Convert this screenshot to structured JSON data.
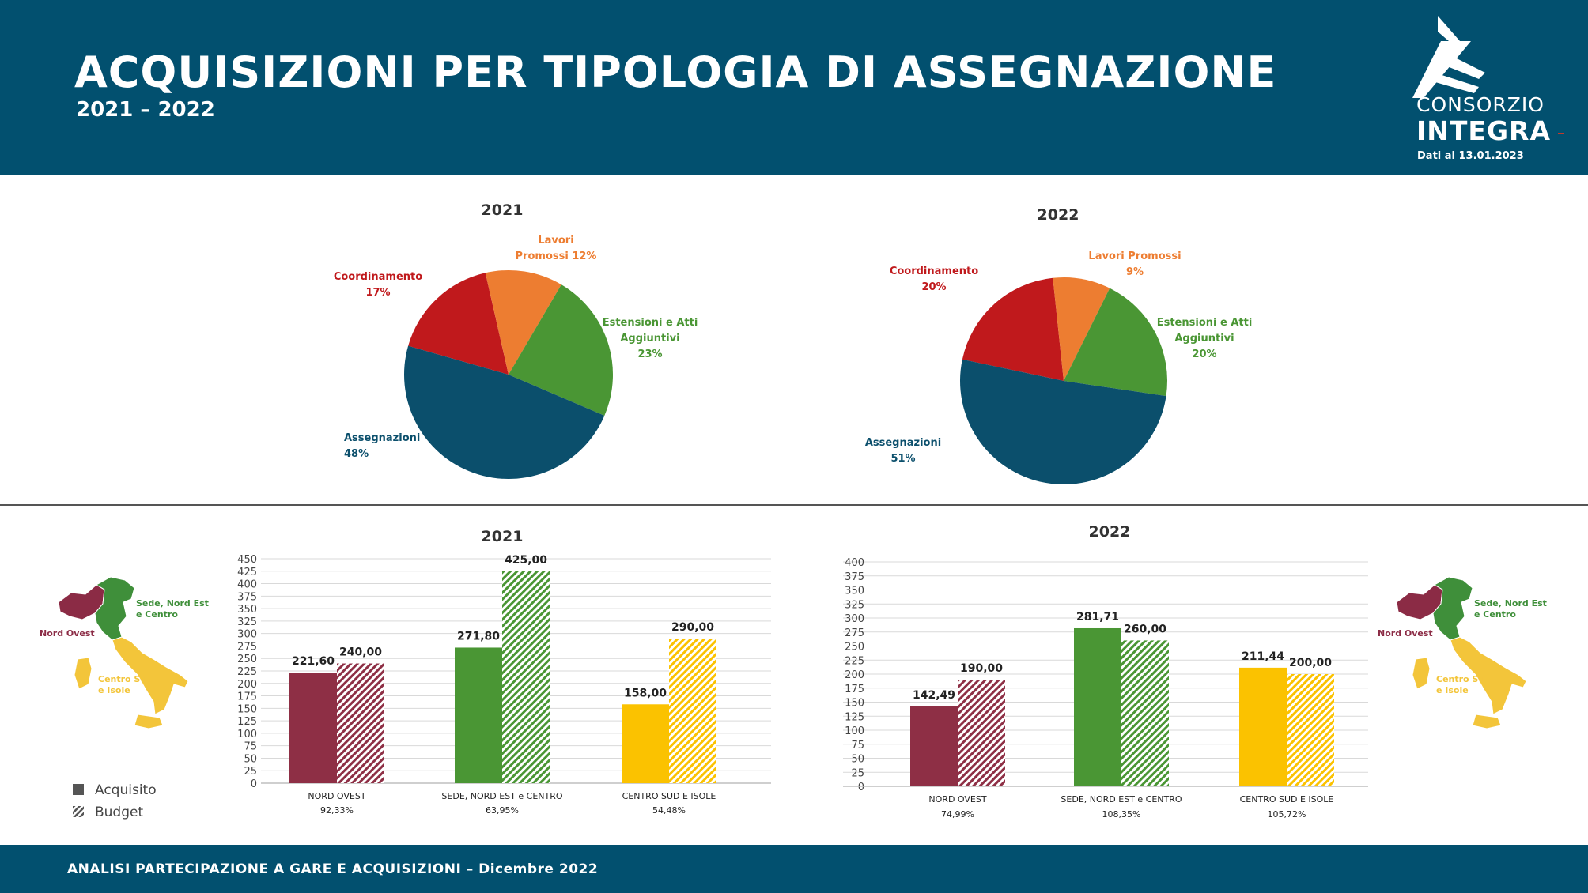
{
  "header": {
    "title": "ACQUISIZIONI PER TIPOLOGIA DI ASSEGNAZIONE",
    "subtitle": "2021 – 2022",
    "logo_line1": "CONSORZIO",
    "logo_line2": "INTEGRA",
    "as_of": "Dati al 13.01.2023"
  },
  "footer": {
    "text": "ANALISI PARTECIPAZIONE A GARE E ACQUISIZIONI – Dicembre 2022"
  },
  "legend": {
    "acquired": "Acquisito",
    "budget": "Budget"
  },
  "maps": {
    "labels": {
      "nord_ovest": "Nord Ovest",
      "sede1": "Sede, Nord Est",
      "sede2": "e Centro",
      "sud1": "Centro Sud",
      "sud2": "e Isole"
    },
    "colors": {
      "nord_ovest": "#8b2b45",
      "sede": "#3f8f3a",
      "sud": "#f3c53a"
    }
  },
  "chart_data": [
    {
      "type": "pie",
      "title": "2021",
      "slices": [
        {
          "name": "Assegnazioni",
          "value": 48,
          "color": "#0b4f6c"
        },
        {
          "name": "Coordinamento",
          "value": 17,
          "color": "#c0191c"
        },
        {
          "name": "Lavori Promossi",
          "value": 12,
          "color": "#ed7d31"
        },
        {
          "name": "Estensioni e Atti Aggiuntivi",
          "value": 23,
          "color": "#4a9634"
        }
      ],
      "labels": {
        "Assegnazioni": [
          "Assegnazioni",
          "48%"
        ],
        "Coordinamento": [
          "Coordinamento",
          "17%"
        ],
        "Lavori Promossi": [
          "Lavori",
          "Promossi 12%"
        ],
        "Estensioni e Atti Aggiuntivi": [
          "Estensioni e Atti",
          "Aggiuntivi",
          "23%"
        ]
      }
    },
    {
      "type": "pie",
      "title": "2022",
      "slices": [
        {
          "name": "Assegnazioni",
          "value": 51,
          "color": "#0b4f6c"
        },
        {
          "name": "Coordinamento",
          "value": 20,
          "color": "#c0191c"
        },
        {
          "name": "Lavori Promossi",
          "value": 9,
          "color": "#ed7d31"
        },
        {
          "name": "Estensioni e Atti Aggiuntivi",
          "value": 20,
          "color": "#4a9634"
        }
      ],
      "labels": {
        "Assegnazioni": [
          "Assegnazioni",
          "51%"
        ],
        "Coordinamento": [
          "Coordinamento",
          "20%"
        ],
        "Lavori Promossi": [
          "Lavori Promossi",
          "9%"
        ],
        "Estensioni e Atti Aggiuntivi": [
          "Estensioni e Atti",
          "Aggiuntivi",
          "20%"
        ]
      }
    },
    {
      "type": "bar",
      "title": "2021",
      "categories": [
        "NORD OVEST",
        "SEDE, NORD EST e CENTRO",
        "CENTRO SUD E ISOLE"
      ],
      "category_pct": [
        "92,33%",
        "63,95%",
        "54,48%"
      ],
      "colors": [
        "#8e2f45",
        "#4a9634",
        "#fbc200"
      ],
      "series": [
        {
          "name": "Acquisito",
          "values": [
            221.6,
            271.8,
            158.0
          ],
          "labels": [
            "221,60",
            "271,80",
            "158,00"
          ]
        },
        {
          "name": "Budget",
          "values": [
            240.0,
            425.0,
            290.0
          ],
          "labels": [
            "240,00",
            "425,00",
            "290,00"
          ]
        }
      ],
      "ylim": [
        0,
        450
      ],
      "yticks": [
        "0",
        "25",
        "50",
        "75",
        "100",
        "125",
        "150",
        "175",
        "200",
        "225",
        "250",
        "275",
        "300",
        "325",
        "350",
        "375",
        "400",
        "425",
        "450"
      ]
    },
    {
      "type": "bar",
      "title": "2022",
      "categories": [
        "NORD OVEST",
        "SEDE, NORD EST e CENTRO",
        "CENTRO SUD E ISOLE"
      ],
      "category_pct": [
        "74,99%",
        "108,35%",
        "105,72%"
      ],
      "colors": [
        "#8e2f45",
        "#4a9634",
        "#fbc200"
      ],
      "series": [
        {
          "name": "Acquisito",
          "values": [
            142.49,
            281.71,
            211.44
          ],
          "labels": [
            "142,49",
            "281,71",
            "211,44"
          ]
        },
        {
          "name": "Budget",
          "values": [
            190.0,
            260.0,
            200.0
          ],
          "labels": [
            "190,00",
            "260,00",
            "200,00"
          ]
        }
      ],
      "ylim": [
        0,
        400
      ],
      "yticks": [
        "0",
        "25",
        "50",
        "75",
        "100",
        "125",
        "150",
        "175",
        "200",
        "225",
        "250",
        "275",
        "300",
        "325",
        "350",
        "375",
        "400"
      ]
    }
  ]
}
